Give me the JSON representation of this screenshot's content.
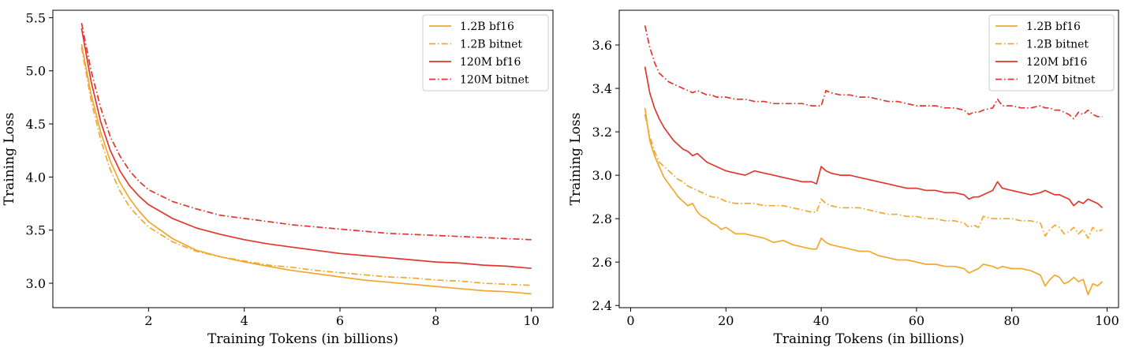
{
  "colors": {
    "orange": "#f0a830",
    "red": "#e0372e",
    "legend_border": "#cccccc"
  },
  "chart_data": [
    {
      "type": "line",
      "xlabel": "Training Tokens (in billions)",
      "ylabel": "Training Loss",
      "xlim": [
        0.0,
        10.45
      ],
      "ylim": [
        2.77,
        5.57
      ],
      "xticks": [
        2,
        4,
        6,
        8,
        10
      ],
      "xtick_labels": [
        "2",
        "4",
        "6",
        "8",
        "10"
      ],
      "yticks": [
        3.0,
        3.5,
        4.0,
        4.5,
        5.0,
        5.5
      ],
      "ytick_labels": [
        "3.0",
        "3.5",
        "4.0",
        "4.5",
        "5.0",
        "5.5"
      ],
      "legend_position": "top-right",
      "series": [
        {
          "name": "1.2B bf16",
          "color": "orange",
          "style": "solid",
          "x": [
            0.6,
            0.8,
            1.0,
            1.2,
            1.4,
            1.6,
            1.8,
            2.0,
            2.5,
            3.0,
            3.5,
            4.0,
            4.5,
            5.0,
            5.5,
            6.0,
            6.5,
            7.0,
            7.5,
            8.0,
            8.5,
            9.0,
            9.5,
            10.0
          ],
          "y": [
            5.25,
            4.78,
            4.42,
            4.15,
            3.95,
            3.8,
            3.68,
            3.58,
            3.42,
            3.31,
            3.25,
            3.2,
            3.16,
            3.12,
            3.09,
            3.06,
            3.03,
            3.01,
            2.99,
            2.97,
            2.95,
            2.93,
            2.92,
            2.9
          ]
        },
        {
          "name": "1.2B bitnet",
          "color": "orange",
          "style": "dashdot",
          "x": [
            0.6,
            0.8,
            1.0,
            1.2,
            1.4,
            1.6,
            1.8,
            2.0,
            2.5,
            3.0,
            3.5,
            4.0,
            4.5,
            5.0,
            5.5,
            6.0,
            6.5,
            7.0,
            7.5,
            8.0,
            8.5,
            9.0,
            9.5,
            10.0
          ],
          "y": [
            5.22,
            4.72,
            4.35,
            4.07,
            3.87,
            3.72,
            3.62,
            3.53,
            3.39,
            3.3,
            3.25,
            3.21,
            3.17,
            3.15,
            3.12,
            3.1,
            3.08,
            3.06,
            3.05,
            3.03,
            3.02,
            3.0,
            2.99,
            2.98
          ]
        },
        {
          "name": "120M bf16",
          "color": "red",
          "style": "solid",
          "x": [
            0.6,
            0.8,
            1.0,
            1.2,
            1.4,
            1.6,
            1.8,
            2.0,
            2.5,
            3.0,
            3.5,
            4.0,
            4.5,
            5.0,
            5.5,
            6.0,
            6.5,
            7.0,
            7.5,
            8.0,
            8.5,
            9.0,
            9.5,
            10.0
          ],
          "y": [
            5.4,
            4.9,
            4.52,
            4.25,
            4.06,
            3.92,
            3.82,
            3.74,
            3.61,
            3.52,
            3.46,
            3.41,
            3.37,
            3.34,
            3.31,
            3.28,
            3.26,
            3.24,
            3.22,
            3.2,
            3.19,
            3.17,
            3.16,
            3.14
          ]
        },
        {
          "name": "120M bitnet",
          "color": "red",
          "style": "dashdot",
          "x": [
            0.6,
            0.8,
            1.0,
            1.2,
            1.4,
            1.6,
            1.8,
            2.0,
            2.5,
            3.0,
            3.5,
            4.0,
            4.5,
            5.0,
            5.5,
            6.0,
            6.5,
            7.0,
            7.5,
            8.0,
            8.5,
            9.0,
            9.5,
            10.0
          ],
          "y": [
            5.45,
            5.0,
            4.65,
            4.38,
            4.2,
            4.06,
            3.96,
            3.88,
            3.77,
            3.7,
            3.64,
            3.61,
            3.58,
            3.55,
            3.53,
            3.51,
            3.49,
            3.47,
            3.46,
            3.45,
            3.44,
            3.43,
            3.42,
            3.41
          ]
        }
      ]
    },
    {
      "type": "line",
      "xlabel": "Training Tokens (in billions)",
      "ylabel": "Training Loss",
      "xlim": [
        -2.4,
        102.4
      ],
      "ylim": [
        2.39,
        3.76
      ],
      "xticks": [
        0,
        20,
        40,
        60,
        80,
        100
      ],
      "xtick_labels": [
        "0",
        "20",
        "40",
        "60",
        "80",
        "100"
      ],
      "yticks": [
        2.4,
        2.6,
        2.8,
        3.0,
        3.2,
        3.4,
        3.6
      ],
      "ytick_labels": [
        "2.4",
        "2.6",
        "2.8",
        "3.0",
        "3.2",
        "3.4",
        "3.6"
      ],
      "legend_position": "top-right",
      "series": [
        {
          "name": "1.2B bf16",
          "color": "orange",
          "style": "solid",
          "x": [
            3,
            4,
            5,
            6,
            7,
            8,
            9,
            10,
            11,
            12,
            13,
            14,
            15,
            16,
            17,
            18,
            19,
            20,
            22,
            24,
            26,
            28,
            30,
            32,
            34,
            36,
            38,
            39,
            40,
            41,
            42,
            44,
            46,
            48,
            50,
            52,
            54,
            56,
            58,
            60,
            62,
            64,
            66,
            68,
            70,
            71,
            72,
            73,
            74,
            76,
            77,
            78,
            80,
            82,
            84,
            86,
            87,
            88,
            89,
            90,
            91,
            92,
            93,
            94,
            95,
            96,
            97,
            98,
            99
          ],
          "y": [
            3.31,
            3.16,
            3.09,
            3.04,
            2.99,
            2.96,
            2.93,
            2.9,
            2.88,
            2.86,
            2.87,
            2.83,
            2.81,
            2.8,
            2.78,
            2.77,
            2.75,
            2.76,
            2.73,
            2.73,
            2.72,
            2.71,
            2.69,
            2.7,
            2.68,
            2.67,
            2.66,
            2.66,
            2.71,
            2.69,
            2.68,
            2.67,
            2.66,
            2.65,
            2.65,
            2.63,
            2.62,
            2.61,
            2.61,
            2.6,
            2.59,
            2.59,
            2.58,
            2.58,
            2.57,
            2.55,
            2.56,
            2.57,
            2.59,
            2.58,
            2.57,
            2.58,
            2.57,
            2.57,
            2.56,
            2.54,
            2.49,
            2.52,
            2.54,
            2.53,
            2.5,
            2.51,
            2.53,
            2.51,
            2.52,
            2.45,
            2.5,
            2.49,
            2.51
          ]
        },
        {
          "name": "1.2B bitnet",
          "color": "orange",
          "style": "dashdot",
          "x": [
            3,
            4,
            5,
            6,
            7,
            8,
            9,
            10,
            11,
            12,
            13,
            14,
            15,
            16,
            17,
            18,
            19,
            20,
            22,
            24,
            26,
            28,
            30,
            32,
            34,
            36,
            38,
            39,
            40,
            41,
            42,
            44,
            46,
            48,
            50,
            52,
            54,
            56,
            58,
            60,
            62,
            64,
            66,
            68,
            70,
            71,
            72,
            73,
            74,
            76,
            77,
            78,
            80,
            82,
            84,
            86,
            87,
            88,
            89,
            90,
            91,
            92,
            93,
            94,
            95,
            96,
            97,
            98,
            99
          ],
          "y": [
            3.28,
            3.18,
            3.11,
            3.06,
            3.04,
            3.02,
            3.0,
            2.98,
            2.97,
            2.95,
            2.94,
            2.93,
            2.92,
            2.91,
            2.9,
            2.9,
            2.89,
            2.88,
            2.87,
            2.87,
            2.87,
            2.86,
            2.86,
            2.86,
            2.85,
            2.84,
            2.83,
            2.83,
            2.89,
            2.87,
            2.86,
            2.85,
            2.85,
            2.85,
            2.84,
            2.83,
            2.82,
            2.82,
            2.81,
            2.81,
            2.8,
            2.8,
            2.79,
            2.79,
            2.78,
            2.76,
            2.77,
            2.76,
            2.81,
            2.8,
            2.8,
            2.8,
            2.8,
            2.79,
            2.79,
            2.78,
            2.72,
            2.75,
            2.77,
            2.76,
            2.73,
            2.74,
            2.76,
            2.73,
            2.75,
            2.71,
            2.76,
            2.74,
            2.75
          ]
        },
        {
          "name": "120M bf16",
          "color": "red",
          "style": "solid",
          "x": [
            3,
            4,
            5,
            6,
            7,
            8,
            9,
            10,
            11,
            12,
            13,
            14,
            15,
            16,
            17,
            18,
            19,
            20,
            22,
            24,
            26,
            28,
            30,
            32,
            34,
            36,
            38,
            39,
            40,
            41,
            42,
            44,
            46,
            48,
            50,
            52,
            54,
            56,
            58,
            60,
            62,
            64,
            66,
            68,
            70,
            71,
            72,
            73,
            74,
            76,
            77,
            78,
            80,
            82,
            84,
            86,
            87,
            88,
            89,
            90,
            91,
            92,
            93,
            94,
            95,
            96,
            97,
            98,
            99
          ],
          "y": [
            3.5,
            3.38,
            3.31,
            3.26,
            3.22,
            3.19,
            3.16,
            3.14,
            3.12,
            3.11,
            3.09,
            3.1,
            3.08,
            3.06,
            3.05,
            3.04,
            3.03,
            3.02,
            3.01,
            3.0,
            3.02,
            3.01,
            3.0,
            2.99,
            2.98,
            2.97,
            2.97,
            2.96,
            3.04,
            3.02,
            3.01,
            3.0,
            3.0,
            2.99,
            2.98,
            2.97,
            2.96,
            2.95,
            2.94,
            2.94,
            2.93,
            2.93,
            2.92,
            2.92,
            2.91,
            2.89,
            2.9,
            2.9,
            2.91,
            2.93,
            2.97,
            2.94,
            2.93,
            2.92,
            2.91,
            2.92,
            2.93,
            2.92,
            2.91,
            2.91,
            2.9,
            2.89,
            2.86,
            2.88,
            2.87,
            2.89,
            2.88,
            2.87,
            2.85
          ]
        },
        {
          "name": "120M bitnet",
          "color": "red",
          "style": "dashdot",
          "x": [
            3,
            4,
            5,
            6,
            7,
            8,
            9,
            10,
            11,
            12,
            13,
            14,
            15,
            16,
            17,
            18,
            19,
            20,
            22,
            24,
            26,
            28,
            30,
            32,
            34,
            36,
            38,
            39,
            40,
            41,
            42,
            44,
            46,
            48,
            50,
            52,
            54,
            56,
            58,
            60,
            62,
            64,
            66,
            68,
            70,
            71,
            72,
            73,
            74,
            76,
            77,
            78,
            80,
            82,
            84,
            86,
            87,
            88,
            89,
            90,
            91,
            92,
            93,
            94,
            95,
            96,
            97,
            98,
            99
          ],
          "y": [
            3.69,
            3.59,
            3.52,
            3.47,
            3.45,
            3.43,
            3.42,
            3.41,
            3.4,
            3.39,
            3.38,
            3.39,
            3.38,
            3.37,
            3.37,
            3.36,
            3.36,
            3.36,
            3.35,
            3.35,
            3.34,
            3.34,
            3.33,
            3.33,
            3.33,
            3.33,
            3.32,
            3.32,
            3.32,
            3.39,
            3.38,
            3.37,
            3.37,
            3.36,
            3.36,
            3.35,
            3.34,
            3.34,
            3.33,
            3.32,
            3.32,
            3.32,
            3.31,
            3.31,
            3.3,
            3.28,
            3.29,
            3.29,
            3.3,
            3.31,
            3.35,
            3.32,
            3.32,
            3.31,
            3.31,
            3.32,
            3.31,
            3.31,
            3.3,
            3.3,
            3.29,
            3.28,
            3.26,
            3.29,
            3.28,
            3.3,
            3.28,
            3.27,
            3.27
          ]
        }
      ]
    }
  ]
}
